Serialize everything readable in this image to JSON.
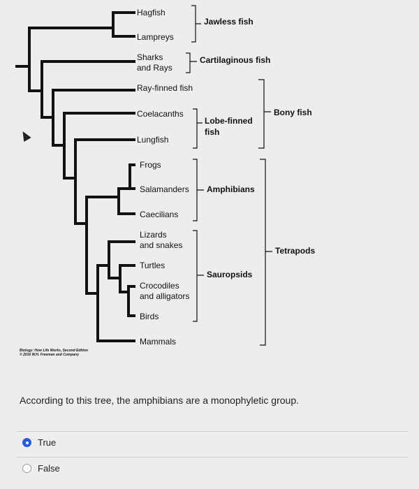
{
  "diagram": {
    "taxa": {
      "hagfish": "Hagfish",
      "lampreys": "Lampreys",
      "sharks": "Sharks",
      "and_rays": "and Rays",
      "ray_finned": "Ray-finned fish",
      "coelacanths": "Coelacanths",
      "lungfish": "Lungfish",
      "frogs": "Frogs",
      "salamanders": "Salamanders",
      "caecilians": "Caecilians",
      "lizards": "Lizards",
      "and_snakes": "and snakes",
      "turtles": "Turtles",
      "crocodiles": "Crocodiles",
      "and_alligators": "and alligators",
      "birds": "Birds",
      "mammals": "Mammals"
    },
    "groups": {
      "jawless": "Jawless fish",
      "cartilaginous": "Cartilaginous fish",
      "bony": "Bony fish",
      "lobe_finned_1": "Lobe-finned",
      "lobe_finned_2": "fish",
      "amphibians": "Amphibians",
      "tetrapods": "Tetrapods",
      "sauropsids": "Sauropsids"
    },
    "credit_line1": "Biology: How Life Works, Second Edition",
    "credit_line2": "© 2016 W.H. Freeman and Company"
  },
  "question": {
    "text": "According to this tree, the amphibians are a monophyletic group.",
    "options": [
      {
        "label": "True",
        "selected": true
      },
      {
        "label": "False",
        "selected": false
      }
    ]
  }
}
